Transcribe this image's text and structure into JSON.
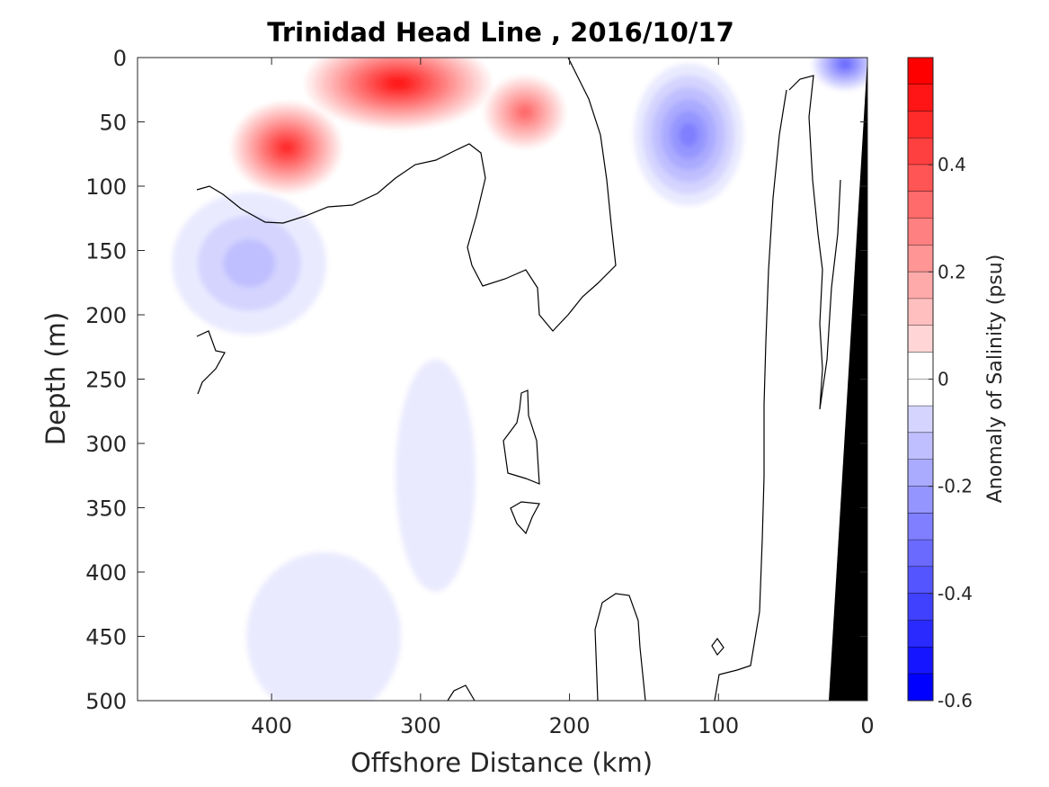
{
  "chart_data": {
    "type": "heatmap",
    "title": "Trinidad Head Line , 2016/10/17",
    "xlabel": "Offshore Distance (km)",
    "ylabel": "Depth (m)",
    "xlim": [
      490,
      0
    ],
    "ylim": [
      0,
      500
    ],
    "x_reversed": true,
    "y_reversed": true,
    "x_ticks": [
      400,
      300,
      200,
      100,
      0
    ],
    "x_tick_labels": [
      "400",
      "300",
      "200",
      "100",
      "0"
    ],
    "y_ticks": [
      0,
      50,
      100,
      150,
      200,
      250,
      300,
      350,
      400,
      450,
      500
    ],
    "y_tick_labels": [
      "0",
      "50",
      "100",
      "150",
      "200",
      "250",
      "300",
      "350",
      "400",
      "450",
      "500"
    ],
    "colorbar": {
      "label": "Anomaly of Salinity (psu)",
      "min": -0.6,
      "max": 0.6,
      "step": 0.05,
      "ticks": [
        0.4,
        0.2,
        0,
        -0.2,
        -0.4,
        -0.6
      ],
      "tick_labels": [
        "0.4",
        "0.2",
        "0",
        "-0.2",
        "-0.4",
        "-0.6"
      ],
      "colormap": "blue-white-red"
    },
    "colors": {
      "positive": "#ff0000",
      "negative": "#0000ff",
      "neutral": "#ffffff",
      "bathymetry": "#000000",
      "zero_contour": "#000000"
    },
    "regions": [
      {
        "name": "positive anomaly core 1",
        "x_range": [
          360,
          270
        ],
        "depth_range": [
          0,
          40
        ],
        "value": 0.55
      },
      {
        "name": "positive anomaly core 2",
        "x_range": [
          410,
          370
        ],
        "depth_range": [
          50,
          90
        ],
        "value": 0.5
      },
      {
        "name": "positive anomaly core 3",
        "x_range": [
          240,
          220
        ],
        "depth_range": [
          30,
          55
        ],
        "value": 0.35
      },
      {
        "name": "negative anomaly nearshore",
        "x_range": [
          140,
          100
        ],
        "depth_range": [
          20,
          100
        ],
        "value": -0.3
      },
      {
        "name": "negative anomaly surface",
        "x_range": [
          20,
          10
        ],
        "depth_range": [
          0,
          10
        ],
        "value": -0.35
      },
      {
        "name": "negative anomaly subsurface",
        "x_range": [
          450,
          380
        ],
        "depth_range": [
          120,
          200
        ],
        "value": -0.15
      },
      {
        "name": "negative anomaly deep patch 1",
        "x_range": [
          300,
          280
        ],
        "depth_range": [
          250,
          400
        ],
        "value": -0.05
      },
      {
        "name": "negative anomaly deep patch 2",
        "x_range": [
          400,
          330
        ],
        "depth_range": [
          400,
          500
        ],
        "value": -0.05
      }
    ]
  }
}
